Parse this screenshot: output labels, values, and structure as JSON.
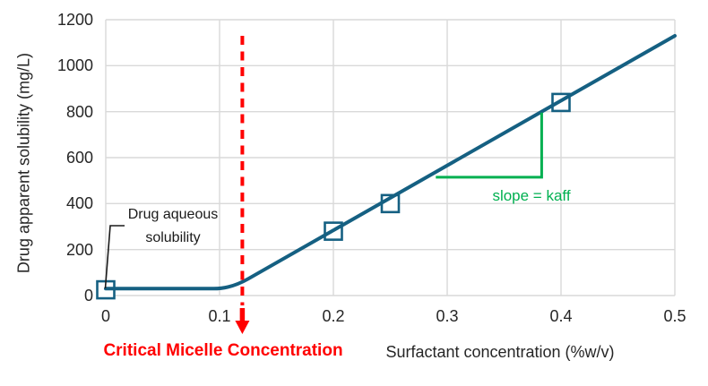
{
  "figure": {
    "background": "#FFFFFF",
    "grid_color": "#D9D9D9",
    "text_color": "#262626"
  },
  "chart_data": {
    "type": "line",
    "title": "",
    "xlabel": "Surfactant concentration  (%w/v)",
    "ylabel": "Drug apparent solubility (mg/L)",
    "xlim": [
      0,
      0.5
    ],
    "ylim": [
      0,
      1200
    ],
    "x_ticks": [
      "0",
      "0.1",
      "0.2",
      "0.3",
      "0.4",
      "0.5"
    ],
    "x_tick_values": [
      0,
      0.1,
      0.2,
      0.3,
      0.4,
      0.5
    ],
    "y_ticks": [
      "0",
      "200",
      "400",
      "600",
      "800",
      "1000",
      "1200"
    ],
    "y_tick_values": [
      0,
      200,
      400,
      600,
      800,
      1000,
      1200
    ],
    "grid": true,
    "legend": "none",
    "series": [
      {
        "name": "Drug apparent solubility",
        "color": "#156082",
        "line_width": 4,
        "description": "Flat at aqueous solubility (~30 mg/L) until CMC, then linear increase",
        "line_points": [
          [
            0,
            30
          ],
          [
            0.11,
            30
          ],
          [
            0.5,
            1130
          ]
        ],
        "marker": "open-square",
        "marker_points": [
          [
            0,
            25
          ],
          [
            0.2,
            280
          ],
          [
            0.25,
            400
          ],
          [
            0.4,
            840
          ]
        ]
      }
    ],
    "cmc_line": {
      "x": 0.12,
      "color": "#FF0000",
      "style": "dashed-vertical-with-down-arrow"
    },
    "slope_triangle": {
      "color": "#00B050",
      "x_start": 0.29,
      "x_end": 0.383,
      "y_base": 515,
      "y_top": 796
    }
  },
  "annotations": {
    "aqueous_label": "Drug aqueous solubility",
    "slope_label": "slope = kaff",
    "slope_color": "#00B050",
    "cmc_label": "Critical Micelle Concentration"
  }
}
